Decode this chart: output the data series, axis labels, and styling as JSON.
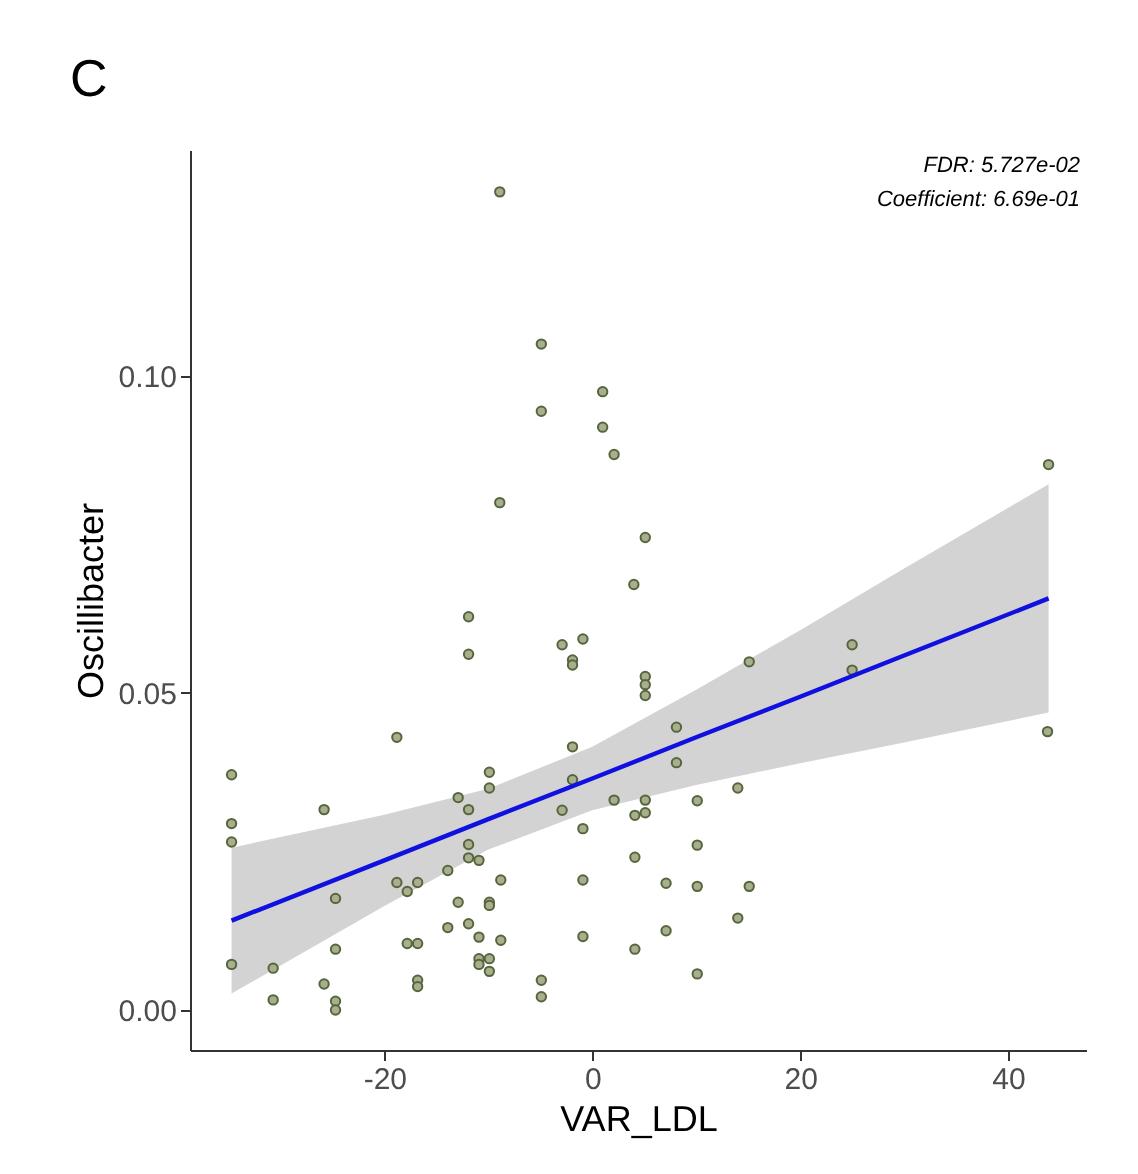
{
  "chart_data": {
    "type": "scatter",
    "title": "C",
    "xlabel": "VAR_LDL",
    "ylabel": "Oscillibacter",
    "annotations": [
      "FDR: 5.727e-02",
      "Coefficient: 6.69e-01"
    ],
    "xlim": [
      -38.7,
      47.5
    ],
    "ylim": [
      -0.0063,
      0.1356
    ],
    "xticks": [
      -20,
      0,
      20,
      40
    ],
    "yticks": [
      {
        "value": 0,
        "label": "0.00"
      },
      {
        "value": 0.05,
        "label": "0.05"
      },
      {
        "value": 0.1,
        "label": "0.10"
      }
    ],
    "grid": false,
    "series": [
      {
        "type": "scatter",
        "marker": "circle",
        "color": "#a9ae8c",
        "x": [
          -8.9,
          -4.9,
          1.0,
          -4.9,
          1.0,
          2.1,
          -8.9,
          5.1,
          4.0,
          43.9,
          -11.9,
          -11.9,
          -2.9,
          -0.9,
          -1.9,
          -1.9,
          5.1,
          5.1,
          5.1,
          -18.8,
          -34.7,
          -9.9,
          -9.9,
          -12.9,
          -1.9,
          -1.9,
          -25.8,
          -11.9,
          -34.7,
          -34.7,
          -2.9,
          -0.9,
          2.1,
          5.1,
          4.1,
          5.1,
          -11.9,
          -11.9,
          -10.9,
          4.1,
          -13.9,
          -8.8,
          -18.8,
          -17.8,
          -16.8,
          -24.7,
          -0.9,
          -12.9,
          -9.9,
          -9.9,
          -13.9,
          -11.9,
          -10.9,
          -8.8,
          -17.8,
          -16.8,
          -0.9,
          4.1,
          -34.7,
          -30.7,
          -24.7,
          -10.9,
          -9.9,
          -10.9,
          -9.9,
          -25.8,
          -16.8,
          -16.8,
          -4.9,
          -30.7,
          -24.7,
          -24.7,
          -4.9,
          15.1,
          25.0,
          25.0,
          8.1,
          8.1,
          10.1,
          14.0,
          10.1,
          7.1,
          10.1,
          15.1,
          14.0,
          7.1,
          10.1,
          43.8
        ],
        "values": [
          0.129,
          0.105,
          0.0975,
          0.0944,
          0.0919,
          0.0876,
          0.08,
          0.0745,
          0.0671,
          0.086,
          0.062,
          0.0561,
          0.0576,
          0.0585,
          0.0552,
          0.0544,
          0.0526,
          0.0513,
          0.0496,
          0.043,
          0.0371,
          0.0375,
          0.035,
          0.0335,
          0.0415,
          0.0363,
          0.0316,
          0.0316,
          0.0294,
          0.0265,
          0.0315,
          0.0286,
          0.0331,
          0.0331,
          0.0307,
          0.0311,
          0.0261,
          0.024,
          0.0236,
          0.0241,
          0.022,
          0.0205,
          0.0201,
          0.0187,
          0.0201,
          0.0176,
          0.0205,
          0.017,
          0.017,
          0.0165,
          0.013,
          0.0136,
          0.0115,
          0.011,
          0.0105,
          0.0105,
          0.0116,
          0.0096,
          0.0072,
          0.0066,
          0.0096,
          0.0081,
          0.0081,
          0.0072,
          0.0061,
          0.0041,
          0.0047,
          0.0037,
          0.0047,
          0.0016,
          0.0014,
          0.0,
          0.0021,
          0.0549,
          0.0576,
          0.0536,
          0.0446,
          0.039,
          0.033,
          0.035,
          0.026,
          0.02,
          0.0195,
          0.0195,
          0.0145,
          0.0125,
          0.0057,
          0.0439
        ]
      },
      {
        "type": "line",
        "marker": "none",
        "color": "#1010e0",
        "x": [
          -34.7,
          -20,
          -10,
          0,
          10,
          20,
          30,
          43.9
        ],
        "values": [
          0.0141,
          0.0236,
          0.0301,
          0.0365,
          0.043,
          0.0494,
          0.0559,
          0.0649
        ],
        "lower": [
          0.0026,
          0.0164,
          0.0253,
          0.0315,
          0.0355,
          0.0389,
          0.0422,
          0.0469
        ],
        "upper": [
          0.0256,
          0.0308,
          0.0349,
          0.0415,
          0.0505,
          0.0599,
          0.0696,
          0.0829
        ]
      }
    ]
  }
}
